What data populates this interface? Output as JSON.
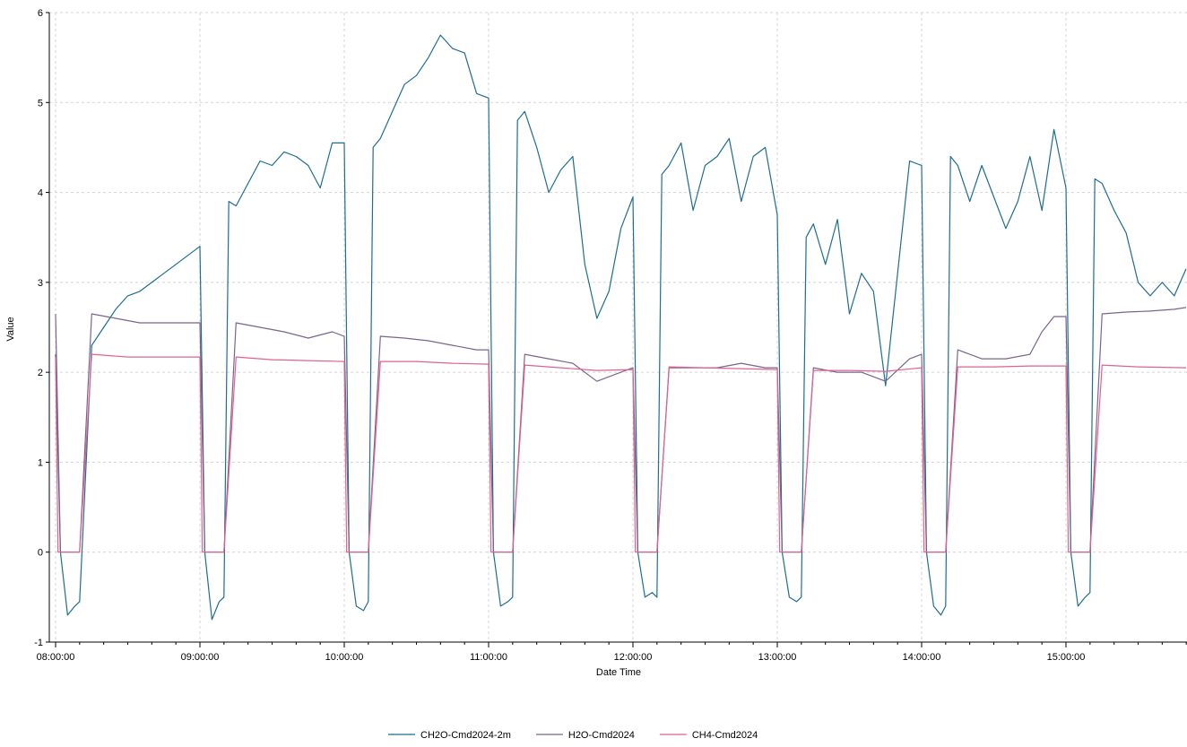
{
  "chart_data": {
    "type": "line",
    "title": "",
    "xlabel": "Date Time",
    "ylabel": "Value",
    "ylim": [
      -1,
      6
    ],
    "yticks": [
      -1,
      0,
      1,
      2,
      3,
      4,
      5,
      6
    ],
    "xlim": [
      "08:00:00",
      "15:50:00"
    ],
    "xtick_labels": [
      "08:00:00",
      "09:00:00",
      "10:00:00",
      "11:00:00",
      "12:00:00",
      "13:00:00",
      "14:00:00",
      "15:00:00"
    ],
    "grid": true,
    "legend_position": "bottom",
    "series": [
      {
        "name": "CH2O-Cmd2024-2m",
        "color": "#1f6d8f",
        "x": [
          "08:00:00",
          "08:02:00",
          "08:05:00",
          "08:08:00",
          "08:10:00",
          "08:15:00",
          "08:20:00",
          "08:25:00",
          "08:30:00",
          "08:35:00",
          "08:40:00",
          "08:45:00",
          "08:50:00",
          "08:55:00",
          "09:00:00",
          "09:02:00",
          "09:05:00",
          "09:08:00",
          "09:10:00",
          "09:12:00",
          "09:15:00",
          "09:20:00",
          "09:25:00",
          "09:30:00",
          "09:35:00",
          "09:40:00",
          "09:45:00",
          "09:50:00",
          "09:55:00",
          "10:00:00",
          "10:02:00",
          "10:05:00",
          "10:08:00",
          "10:10:00",
          "10:12:00",
          "10:15:00",
          "10:20:00",
          "10:25:00",
          "10:30:00",
          "10:35:00",
          "10:40:00",
          "10:45:00",
          "10:50:00",
          "10:55:00",
          "11:00:00",
          "11:02:00",
          "11:05:00",
          "11:08:00",
          "11:10:00",
          "11:12:00",
          "11:15:00",
          "11:20:00",
          "11:25:00",
          "11:30:00",
          "11:35:00",
          "11:40:00",
          "11:45:00",
          "11:50:00",
          "11:55:00",
          "12:00:00",
          "12:02:00",
          "12:05:00",
          "12:08:00",
          "12:10:00",
          "12:12:00",
          "12:15:00",
          "12:20:00",
          "12:25:00",
          "12:30:00",
          "12:35:00",
          "12:40:00",
          "12:45:00",
          "12:50:00",
          "12:55:00",
          "13:00:00",
          "13:02:00",
          "13:05:00",
          "13:08:00",
          "13:10:00",
          "13:12:00",
          "13:15:00",
          "13:20:00",
          "13:25:00",
          "13:30:00",
          "13:35:00",
          "13:40:00",
          "13:45:00",
          "13:50:00",
          "13:55:00",
          "14:00:00",
          "14:02:00",
          "14:05:00",
          "14:08:00",
          "14:10:00",
          "14:12:00",
          "14:15:00",
          "14:20:00",
          "14:25:00",
          "14:30:00",
          "14:35:00",
          "14:40:00",
          "14:45:00",
          "14:50:00",
          "14:55:00",
          "15:00:00",
          "15:02:00",
          "15:05:00",
          "15:08:00",
          "15:10:00",
          "15:12:00",
          "15:15:00",
          "15:20:00",
          "15:25:00",
          "15:30:00",
          "15:35:00",
          "15:40:00",
          "15:45:00",
          "15:50:00"
        ],
        "values": [
          2.2,
          0.0,
          -0.7,
          -0.6,
          -0.55,
          2.3,
          2.5,
          2.7,
          2.85,
          2.9,
          3.0,
          3.1,
          3.2,
          3.3,
          3.4,
          0.0,
          -0.75,
          -0.55,
          -0.5,
          3.9,
          3.85,
          4.1,
          4.35,
          4.3,
          4.45,
          4.4,
          4.3,
          4.05,
          4.55,
          4.55,
          0.0,
          -0.6,
          -0.65,
          -0.55,
          4.5,
          4.6,
          4.9,
          5.2,
          5.3,
          5.5,
          5.75,
          5.6,
          5.55,
          5.1,
          5.05,
          0.0,
          -0.6,
          -0.55,
          -0.5,
          4.8,
          4.9,
          4.5,
          4.0,
          4.25,
          4.4,
          3.2,
          2.6,
          2.9,
          3.6,
          3.95,
          0.0,
          -0.5,
          -0.45,
          -0.5,
          4.2,
          4.3,
          4.55,
          3.8,
          4.3,
          4.4,
          4.6,
          3.9,
          4.4,
          4.5,
          3.75,
          0.0,
          -0.5,
          -0.55,
          -0.5,
          3.5,
          3.65,
          3.2,
          3.7,
          2.65,
          3.1,
          2.9,
          1.85,
          3.1,
          4.35,
          4.3,
          0.0,
          -0.6,
          -0.7,
          -0.6,
          4.4,
          4.3,
          3.9,
          4.3,
          3.95,
          3.6,
          3.9,
          4.4,
          3.8,
          4.7,
          4.05,
          0.0,
          -0.6,
          -0.5,
          -0.45,
          4.15,
          4.1,
          3.8,
          3.55,
          3.0,
          2.85,
          3.0,
          2.85,
          3.15
        ]
      },
      {
        "name": "H2O-Cmd2024",
        "color": "#7a648e",
        "x": [
          "08:00:00",
          "08:02:00",
          "08:05:00",
          "08:08:00",
          "08:10:00",
          "08:15:00",
          "08:25:00",
          "08:35:00",
          "08:45:00",
          "08:55:00",
          "09:00:00",
          "09:02:00",
          "09:05:00",
          "09:08:00",
          "09:10:00",
          "09:15:00",
          "09:25:00",
          "09:35:00",
          "09:45:00",
          "09:55:00",
          "10:00:00",
          "10:02:00",
          "10:05:00",
          "10:08:00",
          "10:10:00",
          "10:15:00",
          "10:25:00",
          "10:35:00",
          "10:45:00",
          "10:55:00",
          "11:00:00",
          "11:02:00",
          "11:05:00",
          "11:08:00",
          "11:10:00",
          "11:15:00",
          "11:25:00",
          "11:35:00",
          "11:45:00",
          "11:55:00",
          "12:00:00",
          "12:02:00",
          "12:05:00",
          "12:08:00",
          "12:10:00",
          "12:15:00",
          "12:25:00",
          "12:35:00",
          "12:45:00",
          "12:55:00",
          "13:00:00",
          "13:02:00",
          "13:05:00",
          "13:08:00",
          "13:10:00",
          "13:15:00",
          "13:25:00",
          "13:35:00",
          "13:45:00",
          "13:55:00",
          "14:00:00",
          "14:02:00",
          "14:05:00",
          "14:08:00",
          "14:10:00",
          "14:15:00",
          "14:25:00",
          "14:35:00",
          "14:45:00",
          "14:50:00",
          "14:55:00",
          "15:00:00",
          "15:02:00",
          "15:05:00",
          "15:08:00",
          "15:10:00",
          "15:15:00",
          "15:25:00",
          "15:35:00",
          "15:45:00",
          "15:50:00"
        ],
        "values": [
          2.65,
          0.0,
          0.0,
          0.0,
          0.0,
          2.65,
          2.6,
          2.55,
          2.55,
          2.55,
          2.55,
          0.0,
          0.0,
          0.0,
          0.0,
          2.55,
          2.5,
          2.45,
          2.38,
          2.45,
          2.4,
          0.0,
          0.0,
          0.0,
          0.0,
          2.4,
          2.38,
          2.35,
          2.3,
          2.25,
          2.25,
          0.0,
          0.0,
          0.0,
          0.0,
          2.2,
          2.15,
          2.1,
          1.9,
          2.0,
          2.05,
          0.0,
          0.0,
          0.0,
          0.0,
          2.05,
          2.05,
          2.05,
          2.1,
          2.05,
          2.05,
          0.0,
          0.0,
          0.0,
          0.0,
          2.05,
          2.0,
          2.0,
          1.9,
          2.15,
          2.2,
          0.0,
          0.0,
          0.0,
          0.0,
          2.25,
          2.15,
          2.15,
          2.2,
          2.45,
          2.62,
          2.62,
          0.0,
          0.0,
          0.0,
          0.0,
          2.65,
          2.67,
          2.68,
          2.7,
          2.72
        ]
      },
      {
        "name": "CH4-Cmd2024",
        "color": "#e0628f",
        "x": [
          "08:00:00",
          "08:01:00",
          "08:05:00",
          "08:08:00",
          "08:10:00",
          "08:15:00",
          "08:30:00",
          "08:45:00",
          "09:00:00",
          "09:01:00",
          "09:05:00",
          "09:08:00",
          "09:10:00",
          "09:15:00",
          "09:30:00",
          "09:45:00",
          "10:00:00",
          "10:01:00",
          "10:05:00",
          "10:08:00",
          "10:10:00",
          "10:15:00",
          "10:30:00",
          "10:45:00",
          "11:00:00",
          "11:01:00",
          "11:05:00",
          "11:08:00",
          "11:10:00",
          "11:15:00",
          "11:30:00",
          "11:45:00",
          "12:00:00",
          "12:01:00",
          "12:05:00",
          "12:08:00",
          "12:10:00",
          "12:15:00",
          "12:30:00",
          "12:45:00",
          "13:00:00",
          "13:01:00",
          "13:05:00",
          "13:08:00",
          "13:10:00",
          "13:15:00",
          "13:30:00",
          "13:45:00",
          "14:00:00",
          "14:01:00",
          "14:05:00",
          "14:08:00",
          "14:10:00",
          "14:15:00",
          "14:30:00",
          "14:45:00",
          "15:00:00",
          "15:01:00",
          "15:05:00",
          "15:08:00",
          "15:10:00",
          "15:15:00",
          "15:30:00",
          "15:50:00"
        ],
        "values": [
          2.17,
          0.0,
          0.0,
          0.0,
          0.0,
          2.2,
          2.17,
          2.17,
          2.17,
          0.0,
          0.0,
          0.0,
          0.0,
          2.17,
          2.14,
          2.13,
          2.12,
          0.0,
          0.0,
          0.0,
          0.0,
          2.12,
          2.12,
          2.1,
          2.09,
          0.0,
          0.0,
          0.0,
          0.0,
          2.08,
          2.05,
          2.02,
          2.03,
          0.0,
          0.0,
          0.0,
          0.0,
          2.06,
          2.05,
          2.04,
          2.03,
          0.0,
          0.0,
          0.0,
          0.0,
          2.02,
          2.02,
          2.01,
          2.05,
          0.0,
          0.0,
          0.0,
          0.0,
          2.06,
          2.06,
          2.07,
          2.07,
          0.0,
          0.0,
          0.0,
          0.0,
          2.08,
          2.06,
          2.05
        ]
      }
    ]
  }
}
